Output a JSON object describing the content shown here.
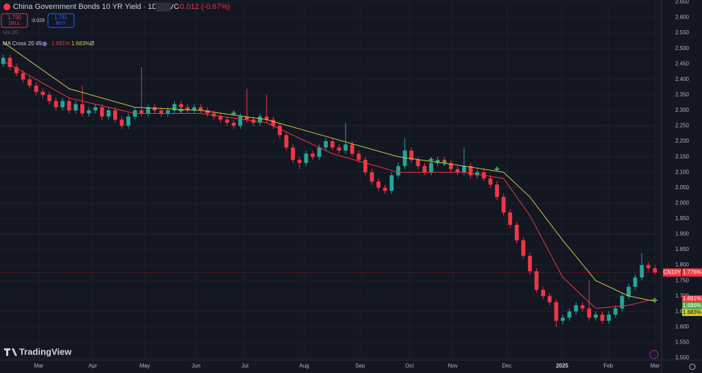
{
  "header": {
    "title": "China Government Bonds 10 YR Yield · 1D · TVC",
    "change": "-0.012 (-0.67%)",
    "sell_price": "1.790",
    "sell_label": "SELL",
    "spread": "-0.029",
    "buy_price": "1.761",
    "buy_label": "BUY",
    "volume_label": "Vol 20",
    "indicator": "MA Cross 20 49",
    "ma_fast": "1.691%",
    "ma_slow": "1.683%",
    "indicator_extra": "Ø"
  },
  "branding": "TradingView",
  "chart_data": {
    "type": "candlestick",
    "x": [
      0,
      1,
      2,
      3,
      4,
      5,
      6,
      7,
      8,
      9,
      10,
      11,
      12,
      13,
      14,
      15,
      16,
      17,
      18,
      19,
      20,
      21,
      22,
      23,
      24,
      25,
      26,
      27,
      28,
      29,
      30,
      31,
      32,
      33,
      34,
      35,
      36,
      37,
      38,
      39,
      40,
      41,
      42,
      43,
      44,
      45,
      46,
      47,
      48,
      49,
      50,
      51,
      52,
      53,
      54,
      55,
      56,
      57,
      58,
      59,
      60,
      61,
      62,
      63,
      64,
      65,
      66,
      67,
      68,
      69,
      70,
      71,
      72,
      73,
      74,
      75,
      76,
      77,
      78,
      79,
      80,
      81,
      82,
      83,
      84,
      85,
      86,
      87,
      88,
      89,
      90,
      91,
      92,
      93,
      94,
      95,
      96,
      97,
      98,
      99
    ],
    "open": [
      2.45,
      2.47,
      2.44,
      2.42,
      2.4,
      2.38,
      2.36,
      2.35,
      2.33,
      2.31,
      2.33,
      2.3,
      2.32,
      2.29,
      2.3,
      2.31,
      2.28,
      2.3,
      2.27,
      2.25,
      2.28,
      2.3,
      2.29,
      2.31,
      2.3,
      2.29,
      2.3,
      2.32,
      2.31,
      2.3,
      2.31,
      2.3,
      2.29,
      2.28,
      2.27,
      2.26,
      2.25,
      2.28,
      2.27,
      2.26,
      2.28,
      2.27,
      2.25,
      2.22,
      2.18,
      2.14,
      2.13,
      2.16,
      2.15,
      2.18,
      2.2,
      2.18,
      2.17,
      2.19,
      2.16,
      2.14,
      2.1,
      2.07,
      2.05,
      2.04,
      2.09,
      2.12,
      2.17,
      2.14,
      2.12,
      2.1,
      2.13,
      2.14,
      2.13,
      2.11,
      2.1,
      2.12,
      2.09,
      2.1,
      2.08,
      2.06,
      2.02,
      1.97,
      1.93,
      1.88,
      1.83,
      1.78,
      1.72,
      1.7,
      1.68,
      1.62,
      1.63,
      1.65,
      1.67,
      1.66,
      1.63,
      1.64,
      1.62,
      1.64,
      1.66,
      1.7,
      1.73,
      1.76,
      1.8,
      1.79
    ],
    "high": [
      2.48,
      2.48,
      2.45,
      2.43,
      2.41,
      2.39,
      2.37,
      2.36,
      2.34,
      2.34,
      2.34,
      2.33,
      2.38,
      2.31,
      2.32,
      2.32,
      2.31,
      2.31,
      2.28,
      2.29,
      2.31,
      2.44,
      2.32,
      2.32,
      2.31,
      2.31,
      2.33,
      2.33,
      2.32,
      2.32,
      2.32,
      2.31,
      2.3,
      2.29,
      2.28,
      2.27,
      2.29,
      2.37,
      2.28,
      2.29,
      2.35,
      2.28,
      2.26,
      2.23,
      2.19,
      2.15,
      2.17,
      2.17,
      2.19,
      2.21,
      2.21,
      2.19,
      2.26,
      2.2,
      2.17,
      2.15,
      2.11,
      2.08,
      2.06,
      2.1,
      2.13,
      2.21,
      2.18,
      2.15,
      2.13,
      2.14,
      2.15,
      2.15,
      2.14,
      2.12,
      2.18,
      2.13,
      2.11,
      2.11,
      2.09,
      2.07,
      2.03,
      1.98,
      1.94,
      1.89,
      1.84,
      1.79,
      1.73,
      1.71,
      1.69,
      1.64,
      1.66,
      1.68,
      1.68,
      1.75,
      1.65,
      1.65,
      1.65,
      1.67,
      1.71,
      1.74,
      1.77,
      1.84,
      1.81,
      1.8
    ],
    "low": [
      2.44,
      2.43,
      2.41,
      2.39,
      2.37,
      2.35,
      2.34,
      2.32,
      2.3,
      2.3,
      2.29,
      2.29,
      2.28,
      2.28,
      2.29,
      2.27,
      2.27,
      2.26,
      2.24,
      2.24,
      2.27,
      2.28,
      2.28,
      2.29,
      2.28,
      2.28,
      2.29,
      2.3,
      2.29,
      2.29,
      2.29,
      2.28,
      2.27,
      2.26,
      2.25,
      2.24,
      2.24,
      2.26,
      2.25,
      2.25,
      2.26,
      2.24,
      2.21,
      2.17,
      2.13,
      2.11,
      2.12,
      2.14,
      2.14,
      2.17,
      2.17,
      2.16,
      2.16,
      2.15,
      2.13,
      2.09,
      2.06,
      2.04,
      2.03,
      2.03,
      2.08,
      2.11,
      2.13,
      2.11,
      2.09,
      2.09,
      2.12,
      2.12,
      2.1,
      2.09,
      2.09,
      2.08,
      2.08,
      2.07,
      2.05,
      2.01,
      1.96,
      1.92,
      1.87,
      1.82,
      1.77,
      1.71,
      1.69,
      1.67,
      1.6,
      1.61,
      1.62,
      1.64,
      1.65,
      1.62,
      1.62,
      1.61,
      1.61,
      1.63,
      1.65,
      1.69,
      1.72,
      1.75,
      1.78,
      1.77
    ],
    "close": [
      2.47,
      2.44,
      2.42,
      2.4,
      2.38,
      2.36,
      2.35,
      2.33,
      2.31,
      2.33,
      2.3,
      2.32,
      2.29,
      2.3,
      2.31,
      2.28,
      2.3,
      2.27,
      2.25,
      2.28,
      2.3,
      2.29,
      2.31,
      2.3,
      2.29,
      2.3,
      2.32,
      2.31,
      2.3,
      2.31,
      2.3,
      2.29,
      2.28,
      2.27,
      2.26,
      2.25,
      2.28,
      2.27,
      2.26,
      2.28,
      2.27,
      2.25,
      2.22,
      2.18,
      2.14,
      2.13,
      2.16,
      2.15,
      2.18,
      2.2,
      2.18,
      2.17,
      2.19,
      2.16,
      2.14,
      2.1,
      2.07,
      2.05,
      2.04,
      2.09,
      2.12,
      2.17,
      2.14,
      2.12,
      2.1,
      2.13,
      2.14,
      2.13,
      2.11,
      2.1,
      2.12,
      2.09,
      2.1,
      2.08,
      2.06,
      2.02,
      1.97,
      1.93,
      1.88,
      1.83,
      1.78,
      1.72,
      1.7,
      1.68,
      1.62,
      1.63,
      1.65,
      1.67,
      1.66,
      1.63,
      1.64,
      1.62,
      1.64,
      1.66,
      1.7,
      1.73,
      1.76,
      1.8,
      1.79,
      1.776
    ],
    "up_color": "#26a69a",
    "down_color": "#f23645",
    "ma_lines": [
      {
        "color": "#f23645",
        "x": [
          0,
          10,
          20,
          30,
          40,
          50,
          60,
          70,
          76,
          80,
          85,
          90,
          95,
          99
        ],
        "values": [
          2.46,
          2.34,
          2.29,
          2.29,
          2.26,
          2.16,
          2.1,
          2.1,
          2.08,
          1.96,
          1.76,
          1.66,
          1.67,
          1.691
        ],
        "last_label": "1.691%"
      },
      {
        "color": "#d4cf3a",
        "x": [
          0,
          10,
          20,
          30,
          40,
          50,
          60,
          70,
          76,
          80,
          85,
          90,
          95,
          99
        ],
        "values": [
          2.52,
          2.37,
          2.31,
          2.3,
          2.27,
          2.21,
          2.15,
          2.12,
          2.1,
          2.02,
          1.88,
          1.75,
          1.7,
          1.683
        ],
        "last_label": "1.683%"
      }
    ],
    "crosses": {
      "color": "#4caf50",
      "x": [
        27,
        35,
        65,
        67,
        75,
        99
      ],
      "values": [
        2.3,
        2.29,
        2.14,
        2.13,
        2.11,
        1.686
      ],
      "last_label": "1.686%"
    },
    "last_price": {
      "value": 1.776,
      "label": "1.776%",
      "symbol": "CN10Y"
    },
    "xlim": [
      -0.5,
      100
    ],
    "xticks": [
      {
        "value": 5.4,
        "label": "Mar"
      },
      {
        "value": 13.6,
        "label": "Apr"
      },
      {
        "value": 21.5,
        "label": "May"
      },
      {
        "value": 29.3,
        "label": "Jun"
      },
      {
        "value": 36.7,
        "label": "Jul"
      },
      {
        "value": 45.7,
        "label": "Aug"
      },
      {
        "value": 54.2,
        "label": "Sep"
      },
      {
        "value": 61.7,
        "label": "Oct"
      },
      {
        "value": 68.3,
        "label": "Nov"
      },
      {
        "value": 76.5,
        "label": "Dec"
      },
      {
        "value": 84.9,
        "label": "2025"
      },
      {
        "value": 91.9,
        "label": "Feb"
      },
      {
        "value": 99,
        "label": "Mar"
      }
    ],
    "ylim": [
      1.5,
      2.65
    ],
    "yticks": [
      {
        "value": 1.5,
        "label": "1.500"
      },
      {
        "value": 1.55,
        "label": "1.550"
      },
      {
        "value": 1.6,
        "label": "1.600"
      },
      {
        "value": 1.65,
        "label": "1.650"
      },
      {
        "value": 1.7,
        "label": "1.700"
      },
      {
        "value": 1.75,
        "label": "1.750"
      },
      {
        "value": 1.8,
        "label": "1.800"
      },
      {
        "value": 1.85,
        "label": "1.850"
      },
      {
        "value": 1.9,
        "label": "1.900"
      },
      {
        "value": 1.95,
        "label": "1.950"
      },
      {
        "value": 2.0,
        "label": "2.000"
      },
      {
        "value": 2.05,
        "label": "2.050"
      },
      {
        "value": 2.1,
        "label": "2.100"
      },
      {
        "value": 2.15,
        "label": "2.150"
      },
      {
        "value": 2.2,
        "label": "2.200"
      },
      {
        "value": 2.25,
        "label": "2.250"
      },
      {
        "value": 2.3,
        "label": "2.300"
      },
      {
        "value": 2.35,
        "label": "2.350"
      },
      {
        "value": 2.4,
        "label": "2.400"
      },
      {
        "value": 2.45,
        "label": "2.450"
      },
      {
        "value": 2.5,
        "label": "2.500"
      },
      {
        "value": 2.55,
        "label": "2.550"
      },
      {
        "value": 2.6,
        "label": "2.600"
      },
      {
        "value": 2.65,
        "label": "2.650"
      }
    ]
  }
}
